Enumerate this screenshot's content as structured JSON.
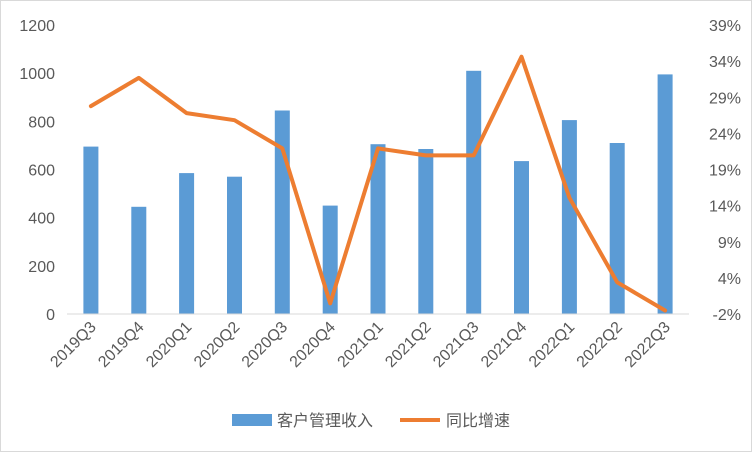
{
  "chart_data": {
    "type": "bar+line",
    "categories": [
      "2019Q3",
      "2019Q4",
      "2020Q1",
      "2020Q2",
      "2020Q3",
      "2020Q4",
      "2021Q1",
      "2021Q2",
      "2021Q3",
      "2021Q4",
      "2022Q1",
      "2022Q2",
      "2022Q3"
    ],
    "series": [
      {
        "name": "客户管理收入",
        "type": "bar",
        "axis": "left",
        "values": [
          695,
          445,
          585,
          570,
          845,
          450,
          705,
          685,
          1010,
          635,
          805,
          710,
          995
        ]
      },
      {
        "name": "同比增速",
        "type": "line",
        "axis": "right",
        "values": [
          27.5,
          31.5,
          26.5,
          25.5,
          21.5,
          -0.5,
          21.5,
          20.5,
          20.5,
          34.5,
          14.5,
          2.5,
          -1.5
        ]
      }
    ],
    "y_left": {
      "ylim": [
        0,
        1200
      ],
      "ticks": [
        "0",
        "200",
        "400",
        "600",
        "800",
        "1000",
        "1200"
      ]
    },
    "y_right": {
      "ylim": [
        -2,
        39
      ],
      "ticks": [
        "-2%",
        "4%",
        "9%",
        "14%",
        "19%",
        "24%",
        "29%",
        "34%",
        "39%"
      ]
    },
    "grid": false,
    "legend": "bottom",
    "colors": {
      "bar": "#5b9bd5",
      "line": "#ed7d31",
      "text": "#595959",
      "axis": "#d9d9d9"
    }
  }
}
